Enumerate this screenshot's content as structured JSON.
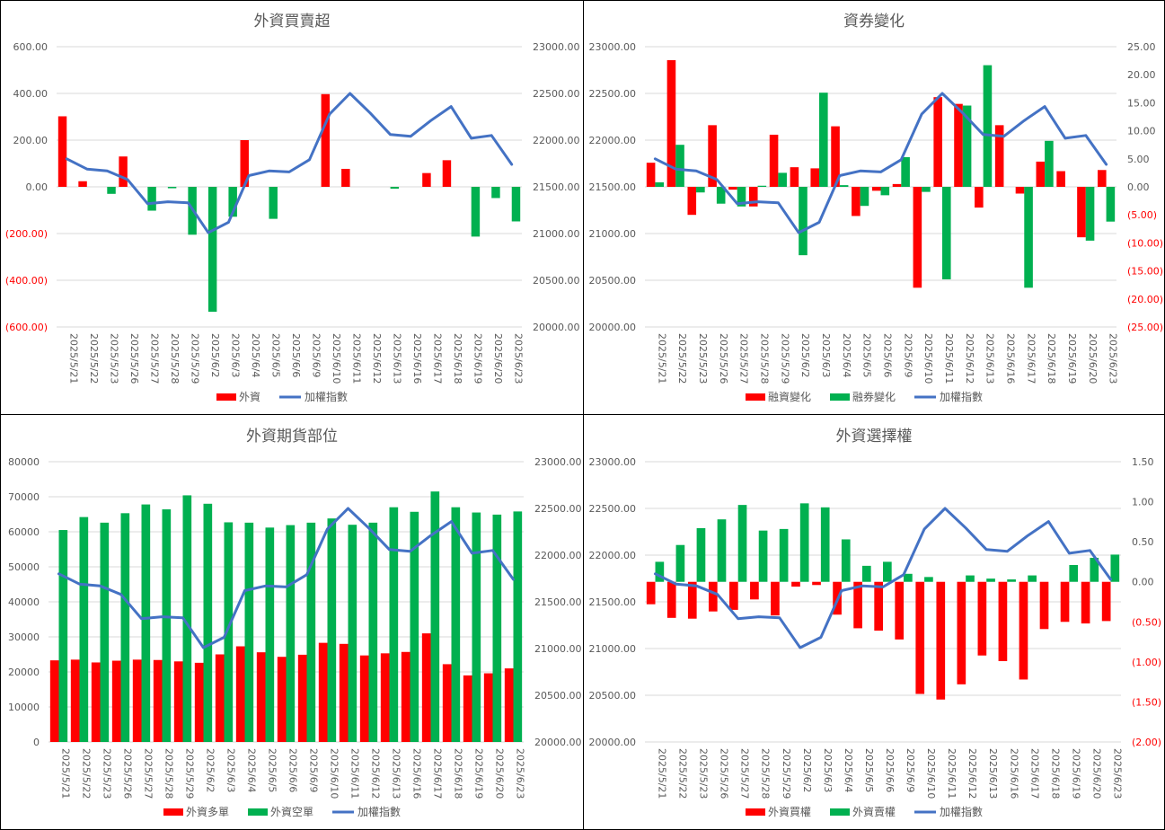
{
  "colors": {
    "red": "#ff0000",
    "green": "#00b050",
    "blue": "#4472c4",
    "grid": "#d9d9d9",
    "tick": "#595959",
    "negative": "#ff0000"
  },
  "dates": [
    "2025/5/21",
    "2025/5/22",
    "2025/5/23",
    "2025/5/26",
    "2025/5/27",
    "2025/5/28",
    "2025/5/29",
    "2025/6/2",
    "2025/6/3",
    "2025/6/4",
    "2025/6/5",
    "2025/6/6",
    "2025/6/9",
    "2025/6/10",
    "2025/6/11",
    "2025/6/12",
    "2025/6/13",
    "2025/6/16",
    "2025/6/17",
    "2025/6/18",
    "2025/6/19",
    "2025/6/20",
    "2025/6/23"
  ],
  "index_values": [
    21800,
    21690,
    21670,
    21580,
    21320,
    21340,
    21330,
    21010,
    21120,
    21620,
    21670,
    21660,
    21790,
    22280,
    22500,
    22290,
    22060,
    22040,
    22210,
    22360,
    22020,
    22050,
    21740
  ],
  "chart_data": [
    {
      "type": "bar",
      "title": "外資買賣超",
      "categories_key": "dates",
      "series": [
        {
          "name": "外資",
          "kind": "bar",
          "color": "#ff0000",
          "axis": "left",
          "sign_colors": false,
          "values": [
            302,
            24,
            0,
            130,
            0,
            0,
            0,
            0,
            0,
            200,
            0,
            0,
            0,
            397,
            77,
            0,
            0,
            0,
            59,
            114,
            0,
            0,
            0
          ]
        },
        {
          "name": "",
          "kind": "bar",
          "color": "#00b050",
          "axis": "left",
          "sign_colors": false,
          "values": [
            0,
            0,
            -30,
            0,
            -102,
            -6,
            -205,
            -535,
            -128,
            0,
            -137,
            0,
            0,
            0,
            0,
            0,
            -8,
            0,
            0,
            0,
            -213,
            -48,
            -148
          ]
        },
        {
          "name": "加權指數",
          "kind": "line",
          "color": "#4472c4",
          "axis": "right",
          "use_index": true
        }
      ],
      "left_axis": {
        "min": -600,
        "max": 600,
        "step": 200
      },
      "right_axis": {
        "min": 20000,
        "max": 23000,
        "step": 500
      },
      "left_ticks": [
        "(600.00)",
        "(400.00)",
        "(200.00)",
        "0.00",
        "200.00",
        "400.00",
        "600.00"
      ],
      "right_ticks": [
        "20000.00",
        "20500.00",
        "21000.00",
        "21500.00",
        "22000.00",
        "22500.00",
        "23000.00"
      ],
      "legend": [
        {
          "label": "外資",
          "type": "bar",
          "color": "#ff0000"
        },
        {
          "label": "加權指數",
          "type": "line",
          "color": "#4472c4"
        }
      ]
    },
    {
      "type": "bar",
      "title": "資券變化",
      "categories_key": "dates",
      "series": [
        {
          "name": "融資變化",
          "kind": "bar",
          "color": "#ff0000",
          "axis": "right",
          "sign_colors": false,
          "values": [
            4.3,
            22.6,
            -5.0,
            11.0,
            -0.5,
            -3.5,
            9.3,
            3.5,
            3.3,
            10.8,
            -5.2,
            -0.7,
            0.5,
            -18.0,
            16.0,
            14.8,
            -3.7,
            11.0,
            -1.2,
            4.5,
            2.8,
            -9.0,
            3.0
          ]
        },
        {
          "name": "融券變化",
          "kind": "bar",
          "color": "#00b050",
          "axis": "right",
          "sign_colors": false,
          "values": [
            0.8,
            7.5,
            -1.0,
            -3.0,
            -3.5,
            0.2,
            2.5,
            -12.2,
            16.8,
            0.3,
            -3.4,
            -1.5,
            5.3,
            -0.9,
            -16.5,
            14.5,
            21.7,
            0,
            -18.0,
            8.2,
            0,
            -9.6,
            -6.2
          ]
        },
        {
          "name": "加權指數",
          "kind": "line",
          "color": "#4472c4",
          "axis": "left",
          "use_index": true
        }
      ],
      "left_axis": {
        "min": 20000,
        "max": 23000,
        "step": 500
      },
      "right_axis": {
        "min": -25,
        "max": 25,
        "step": 5
      },
      "left_ticks": [
        "20000.00",
        "20500.00",
        "21000.00",
        "21500.00",
        "22000.00",
        "22500.00",
        "23000.00"
      ],
      "right_ticks": [
        "(25.00)",
        "(20.00)",
        "(15.00)",
        "(10.00)",
        "(5.00)",
        "0.00",
        "5.00",
        "10.00",
        "15.00",
        "20.00",
        "25.00"
      ],
      "legend": [
        {
          "label": "融資變化",
          "type": "bar",
          "color": "#ff0000"
        },
        {
          "label": "融券變化",
          "type": "bar",
          "color": "#00b050"
        },
        {
          "label": "加權指數",
          "type": "line",
          "color": "#4472c4"
        }
      ]
    },
    {
      "type": "bar",
      "title": "外資期貨部位",
      "categories_key": "dates",
      "series": [
        {
          "name": "外資多單",
          "kind": "bar",
          "color": "#ff0000",
          "axis": "left",
          "sign_colors": false,
          "values": [
            23300,
            23500,
            22700,
            23200,
            23500,
            23400,
            23000,
            22600,
            25000,
            27300,
            25600,
            24300,
            24900,
            28300,
            28000,
            24700,
            25300,
            25700,
            31000,
            22200,
            19000,
            19600,
            21000
          ]
        },
        {
          "name": "外資空單",
          "kind": "bar",
          "color": "#00b050",
          "axis": "left",
          "sign_colors": false,
          "values": [
            60500,
            64200,
            62600,
            65300,
            67800,
            66400,
            70400,
            68000,
            62700,
            62600,
            61200,
            61900,
            62600,
            63800,
            62000,
            62600,
            67000,
            65700,
            71500,
            67000,
            65500,
            64900,
            65800
          ]
        },
        {
          "name": "加權指數",
          "kind": "line",
          "color": "#4472c4",
          "axis": "right",
          "use_index": true
        }
      ],
      "left_axis": {
        "min": 0,
        "max": 80000,
        "step": 10000
      },
      "right_axis": {
        "min": 20000,
        "max": 23000,
        "step": 500
      },
      "left_ticks": [
        "0",
        "10000",
        "20000",
        "30000",
        "40000",
        "50000",
        "60000",
        "70000",
        "80000"
      ],
      "right_ticks": [
        "20000.00",
        "20500.00",
        "21000.00",
        "21500.00",
        "22000.00",
        "22500.00",
        "23000.00"
      ],
      "legend": [
        {
          "label": "外資多單",
          "type": "bar",
          "color": "#ff0000"
        },
        {
          "label": "外資空單",
          "type": "bar",
          "color": "#00b050"
        },
        {
          "label": "加權指數",
          "type": "line",
          "color": "#4472c4"
        }
      ]
    },
    {
      "type": "bar",
      "title": "外資選擇權",
      "categories_key": "dates",
      "series": [
        {
          "name": "外資買權",
          "kind": "bar",
          "color": "#ff0000",
          "axis": "right",
          "sign_colors": false,
          "values": [
            -0.28,
            -0.45,
            -0.46,
            -0.37,
            -0.35,
            -0.22,
            -0.42,
            -0.06,
            -0.04,
            -0.41,
            -0.58,
            -0.61,
            -0.72,
            -1.4,
            -1.47,
            -1.28,
            -0.92,
            -0.99,
            -1.22,
            -0.59,
            -0.5,
            -0.52,
            -0.49
          ]
        },
        {
          "name": "外資賣權",
          "kind": "bar",
          "color": "#00b050",
          "axis": "right",
          "sign_colors": false,
          "values": [
            0.25,
            0.46,
            0.67,
            0.78,
            0.96,
            0.64,
            0.66,
            0.98,
            0.93,
            0.53,
            0.2,
            0.25,
            0.1,
            0.06,
            0,
            0.08,
            0.04,
            0.03,
            0.08,
            0,
            0.21,
            0.3,
            0.34
          ]
        },
        {
          "name": "加權指數",
          "kind": "line",
          "color": "#4472c4",
          "axis": "left",
          "use_index": true
        }
      ],
      "left_axis": {
        "min": 20000,
        "max": 23000,
        "step": 500
      },
      "right_axis": {
        "min": -2,
        "max": 1.5,
        "step": 0.5
      },
      "left_ticks": [
        "20000.00",
        "20500.00",
        "21000.00",
        "21500.00",
        "22000.00",
        "22500.00",
        "23000.00"
      ],
      "right_ticks": [
        "(2.00)",
        "(1.50)",
        "(1.00)",
        "(0.50)",
        "0.00",
        "0.50",
        "1.00",
        "1.50"
      ],
      "legend": [
        {
          "label": "外資買權",
          "type": "bar",
          "color": "#ff0000"
        },
        {
          "label": "外資賣權",
          "type": "bar",
          "color": "#00b050"
        },
        {
          "label": "加權指數",
          "type": "line",
          "color": "#4472c4"
        }
      ]
    }
  ]
}
